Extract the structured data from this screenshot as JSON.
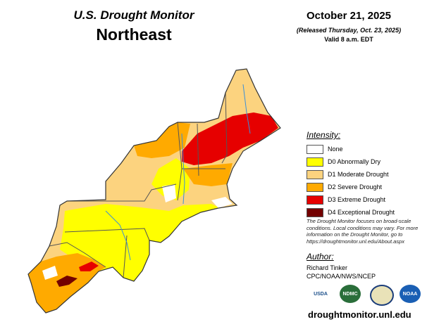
{
  "header": {
    "title": "U.S. Drought Monitor",
    "region": "Northeast",
    "date": "October 21, 2025",
    "released": "(Released Thursday, Oct. 23, 2025)",
    "valid": "Valid 8 a.m. EDT"
  },
  "legend": {
    "title": "Intensity:",
    "items": [
      {
        "label": "None",
        "color": "#ffffff"
      },
      {
        "label": "D0 Abnormally Dry",
        "color": "#ffff00"
      },
      {
        "label": "D1 Moderate Drought",
        "color": "#fcd37f"
      },
      {
        "label": "D2 Severe Drought",
        "color": "#ffaa00"
      },
      {
        "label": "D3 Extreme Drought",
        "color": "#e60000"
      },
      {
        "label": "D4 Exceptional Drought",
        "color": "#730000"
      }
    ]
  },
  "note": "The Drought Monitor focuses on broad-scale conditions. Local conditions may vary. For more information on the Drought Monitor, go to https://droughtmonitor.unl.edu/About.aspx",
  "author": {
    "heading": "Author:",
    "name": "Richard Tinker",
    "affiliation": "CPC/NOAA/NWS/NCEP"
  },
  "logos": [
    "USDA",
    "NDMC",
    "NOAA"
  ],
  "url": "droughtmonitor.unl.edu"
}
